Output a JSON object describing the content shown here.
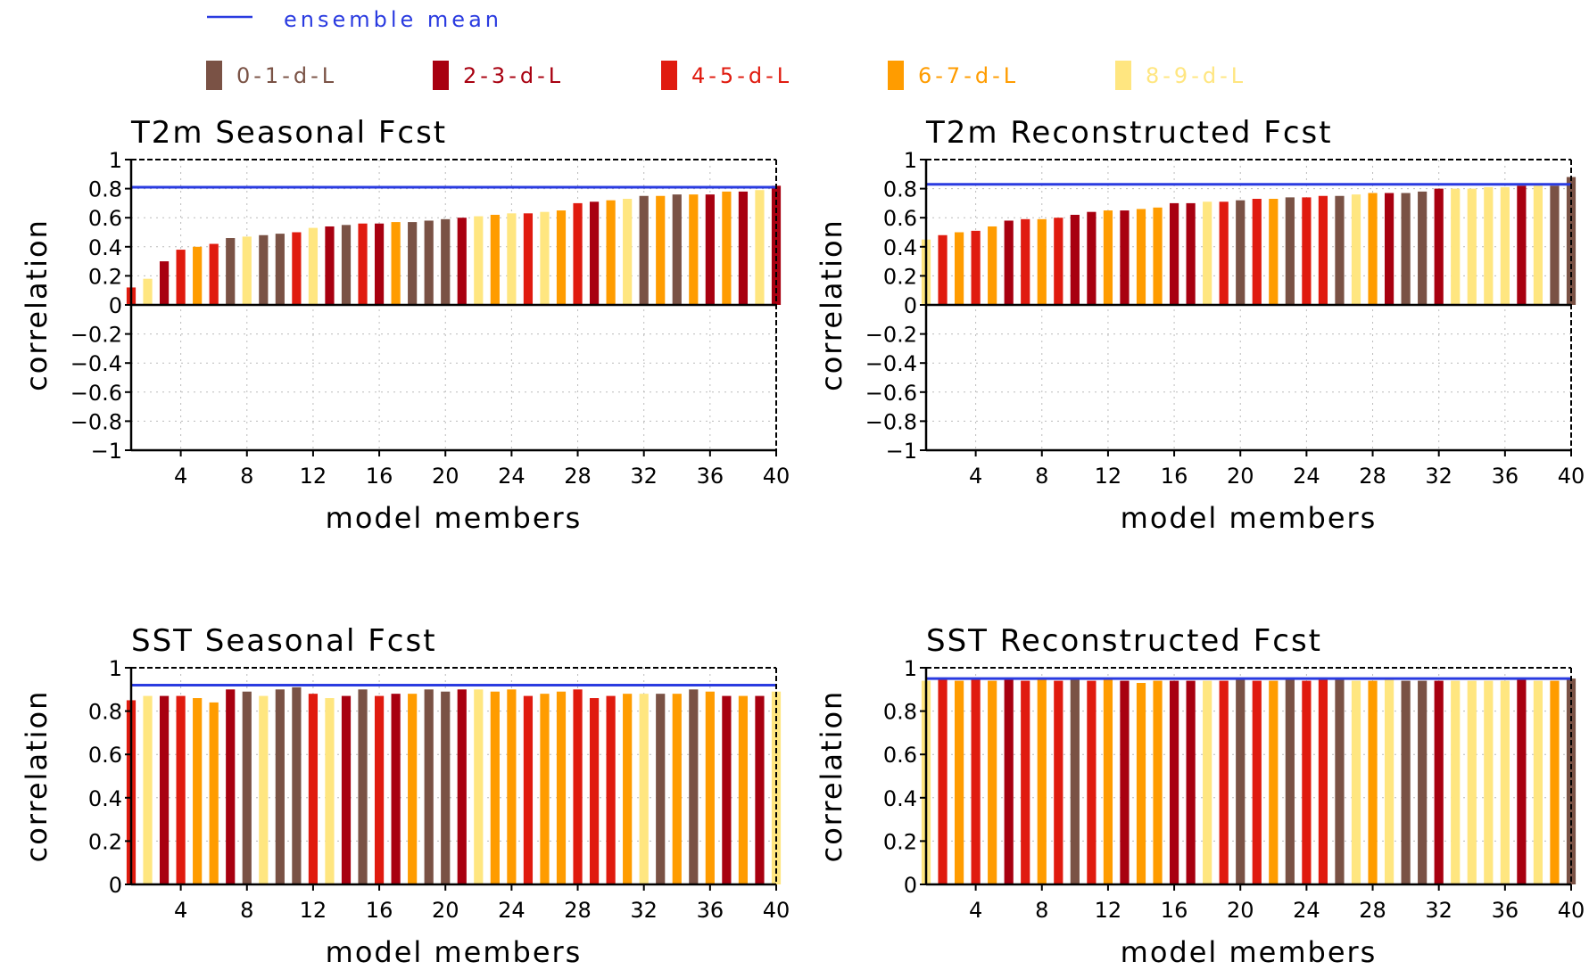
{
  "legend": {
    "mean_label": "ensemble mean",
    "mean_color": "#2a3be0",
    "items": [
      {
        "label": "0-1-d-L",
        "color": "#7a5245"
      },
      {
        "label": "2-3-d-L",
        "color": "#a80010"
      },
      {
        "label": "4-5-d-L",
        "color": "#e01b0f"
      },
      {
        "label": "6-7-d-L",
        "color": "#ff9c00"
      },
      {
        "label": "8-9-d-L",
        "color": "#ffe680"
      }
    ]
  },
  "chart_data": [
    {
      "type": "bar",
      "title": "T2m Seasonal Fcst",
      "xlabel": "model members",
      "ylabel": "correlation",
      "ylim": [
        -1,
        1
      ],
      "xlim": [
        1,
        40
      ],
      "xticks": [
        4,
        8,
        12,
        16,
        20,
        24,
        28,
        32,
        36,
        40
      ],
      "yticks": [
        1,
        0.8,
        0.6,
        0.4,
        0.2,
        0,
        -0.2,
        -0.4,
        -0.6,
        -0.8,
        -1
      ],
      "ytick_labels": [
        "1",
        "0.8",
        "0.6",
        "0.4",
        "0.2",
        "0",
        "−0.2",
        "−0.4",
        "−0.6",
        "−0.8",
        "−1"
      ],
      "grid": true,
      "ensemble_mean": 0.81,
      "x": [
        1,
        2,
        3,
        4,
        5,
        6,
        7,
        8,
        9,
        10,
        11,
        12,
        13,
        14,
        15,
        16,
        17,
        18,
        19,
        20,
        21,
        22,
        23,
        24,
        25,
        26,
        27,
        28,
        29,
        30,
        31,
        32,
        33,
        34,
        35,
        36,
        37,
        38,
        39,
        40
      ],
      "values": [
        0.12,
        0.18,
        0.3,
        0.38,
        0.4,
        0.42,
        0.46,
        0.47,
        0.48,
        0.49,
        0.5,
        0.53,
        0.54,
        0.55,
        0.56,
        0.56,
        0.57,
        0.57,
        0.58,
        0.59,
        0.6,
        0.61,
        0.62,
        0.63,
        0.63,
        0.64,
        0.65,
        0.7,
        0.71,
        0.72,
        0.73,
        0.75,
        0.75,
        0.76,
        0.76,
        0.76,
        0.78,
        0.78,
        0.79,
        0.82
      ],
      "groups": [
        2,
        4,
        1,
        2,
        3,
        2,
        0,
        4,
        0,
        0,
        2,
        4,
        1,
        0,
        2,
        1,
        3,
        0,
        0,
        0,
        1,
        4,
        3,
        4,
        2,
        4,
        3,
        2,
        1,
        3,
        4,
        0,
        3,
        0,
        3,
        1,
        3,
        1,
        4,
        1
      ]
    },
    {
      "type": "bar",
      "title": "T2m Reconstructed Fcst",
      "xlabel": "model members",
      "ylabel": "correlation",
      "ylim": [
        -1,
        1
      ],
      "xlim": [
        1,
        40
      ],
      "xticks": [
        4,
        8,
        12,
        16,
        20,
        24,
        28,
        32,
        36,
        40
      ],
      "yticks": [
        1,
        0.8,
        0.6,
        0.4,
        0.2,
        0,
        -0.2,
        -0.4,
        -0.6,
        -0.8,
        -1
      ],
      "ytick_labels": [
        "1",
        "0.8",
        "0.6",
        "0.4",
        "0.2",
        "0",
        "−0.2",
        "−0.4",
        "−0.6",
        "−0.8",
        "−1"
      ],
      "grid": true,
      "ensemble_mean": 0.83,
      "x": [
        1,
        2,
        3,
        4,
        5,
        6,
        7,
        8,
        9,
        10,
        11,
        12,
        13,
        14,
        15,
        16,
        17,
        18,
        19,
        20,
        21,
        22,
        23,
        24,
        25,
        26,
        27,
        28,
        29,
        30,
        31,
        32,
        33,
        34,
        35,
        36,
        37,
        38,
        39,
        40
      ],
      "values": [
        0.45,
        0.48,
        0.5,
        0.51,
        0.54,
        0.58,
        0.59,
        0.59,
        0.6,
        0.62,
        0.64,
        0.65,
        0.65,
        0.66,
        0.67,
        0.7,
        0.7,
        0.71,
        0.71,
        0.72,
        0.73,
        0.73,
        0.74,
        0.74,
        0.75,
        0.75,
        0.76,
        0.77,
        0.77,
        0.77,
        0.78,
        0.8,
        0.8,
        0.8,
        0.81,
        0.81,
        0.82,
        0.82,
        0.82,
        0.88
      ],
      "groups": [
        4,
        2,
        3,
        2,
        3,
        1,
        2,
        3,
        2,
        1,
        1,
        3,
        1,
        3,
        3,
        1,
        1,
        4,
        2,
        0,
        2,
        3,
        0,
        2,
        2,
        0,
        4,
        3,
        1,
        0,
        0,
        1,
        4,
        4,
        4,
        4,
        1,
        4,
        0,
        0
      ]
    },
    {
      "type": "bar",
      "title": "SST Seasonal Fcst",
      "xlabel": "model members",
      "ylabel": "correlation",
      "ylim": [
        0,
        1
      ],
      "xlim": [
        1,
        40
      ],
      "xticks": [
        4,
        8,
        12,
        16,
        20,
        24,
        28,
        32,
        36,
        40
      ],
      "yticks": [
        1,
        0.8,
        0.6,
        0.4,
        0.2,
        0
      ],
      "ytick_labels": [
        "1",
        "0.8",
        "0.6",
        "0.4",
        "0.2",
        "0"
      ],
      "grid": true,
      "ensemble_mean": 0.92,
      "x": [
        1,
        2,
        3,
        4,
        5,
        6,
        7,
        8,
        9,
        10,
        11,
        12,
        13,
        14,
        15,
        16,
        17,
        18,
        19,
        20,
        21,
        22,
        23,
        24,
        25,
        26,
        27,
        28,
        29,
        30,
        31,
        32,
        33,
        34,
        35,
        36,
        37,
        38,
        39,
        40
      ],
      "values": [
        0.85,
        0.87,
        0.87,
        0.87,
        0.86,
        0.84,
        0.9,
        0.89,
        0.87,
        0.9,
        0.91,
        0.88,
        0.86,
        0.87,
        0.9,
        0.87,
        0.88,
        0.88,
        0.9,
        0.89,
        0.9,
        0.9,
        0.89,
        0.9,
        0.87,
        0.88,
        0.89,
        0.9,
        0.86,
        0.87,
        0.88,
        0.88,
        0.88,
        0.88,
        0.9,
        0.89,
        0.87,
        0.87,
        0.87,
        0.89
      ],
      "groups": [
        2,
        4,
        1,
        2,
        3,
        3,
        1,
        0,
        4,
        0,
        0,
        2,
        4,
        1,
        0,
        2,
        1,
        3,
        0,
        0,
        1,
        4,
        3,
        3,
        2,
        3,
        3,
        2,
        2,
        2,
        3,
        4,
        0,
        3,
        0,
        3,
        1,
        3,
        1,
        4
      ]
    },
    {
      "type": "bar",
      "title": "SST Reconstructed Fcst",
      "xlabel": "model members",
      "ylabel": "correlation",
      "ylim": [
        0,
        1
      ],
      "xlim": [
        1,
        40
      ],
      "xticks": [
        4,
        8,
        12,
        16,
        20,
        24,
        28,
        32,
        36,
        40
      ],
      "yticks": [
        1,
        0.8,
        0.6,
        0.4,
        0.2,
        0
      ],
      "ytick_labels": [
        "1",
        "0.8",
        "0.6",
        "0.4",
        "0.2",
        "0"
      ],
      "grid": true,
      "ensemble_mean": 0.95,
      "x": [
        1,
        2,
        3,
        4,
        5,
        6,
        7,
        8,
        9,
        10,
        11,
        12,
        13,
        14,
        15,
        16,
        17,
        18,
        19,
        20,
        21,
        22,
        23,
        24,
        25,
        26,
        27,
        28,
        29,
        30,
        31,
        32,
        33,
        34,
        35,
        36,
        37,
        38,
        39,
        40
      ],
      "values": [
        0.94,
        0.95,
        0.94,
        0.95,
        0.94,
        0.95,
        0.94,
        0.95,
        0.94,
        0.95,
        0.94,
        0.95,
        0.94,
        0.93,
        0.94,
        0.94,
        0.94,
        0.94,
        0.94,
        0.95,
        0.94,
        0.94,
        0.95,
        0.94,
        0.95,
        0.95,
        0.94,
        0.94,
        0.95,
        0.94,
        0.94,
        0.94,
        0.94,
        0.94,
        0.94,
        0.94,
        0.95,
        0.94,
        0.94,
        0.95
      ],
      "groups": [
        4,
        2,
        3,
        2,
        3,
        1,
        2,
        3,
        2,
        0,
        2,
        3,
        1,
        3,
        3,
        1,
        1,
        4,
        2,
        0,
        2,
        3,
        0,
        2,
        2,
        0,
        4,
        3,
        4,
        0,
        0,
        1,
        4,
        4,
        4,
        4,
        1,
        4,
        3,
        0
      ]
    }
  ]
}
